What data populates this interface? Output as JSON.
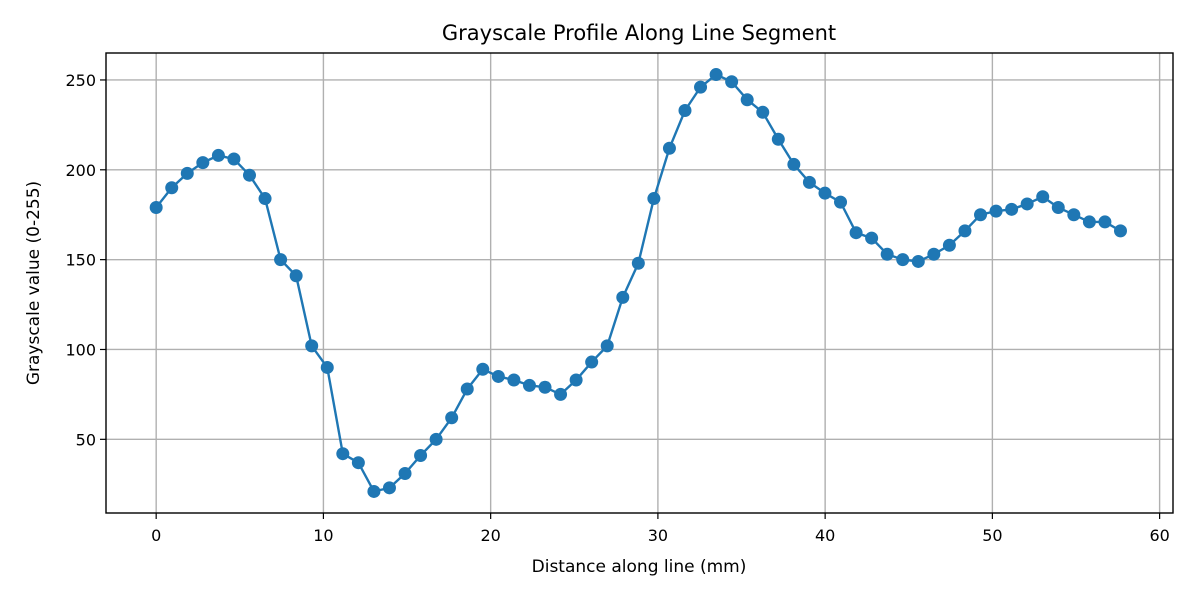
{
  "chart_data": {
    "type": "line",
    "title": "Grayscale Profile Along Line Segment",
    "xlabel": "Distance along line (mm)",
    "ylabel": "Grayscale value (0-255)",
    "xlim": [
      -3,
      60.8
    ],
    "ylim": [
      9,
      265
    ],
    "xticks": [
      0,
      10,
      20,
      30,
      40,
      50,
      60
    ],
    "yticks": [
      50,
      100,
      150,
      200,
      250
    ],
    "grid": true,
    "marker": "circle",
    "series": [
      {
        "color": "#1f77b4",
        "x": [
          0,
          0.93,
          1.86,
          2.79,
          3.72,
          4.65,
          5.58,
          6.51,
          7.44,
          8.37,
          9.3,
          10.23,
          11.16,
          12.09,
          13.02,
          13.95,
          14.88,
          15.81,
          16.74,
          17.67,
          18.6,
          19.53,
          20.46,
          21.39,
          22.32,
          23.25,
          24.18,
          25.11,
          26.04,
          26.97,
          27.9,
          28.83,
          29.76,
          30.69,
          31.62,
          32.55,
          33.48,
          34.41,
          35.34,
          36.27,
          37.2,
          38.13,
          39.06,
          39.99,
          40.92,
          41.85,
          42.78,
          43.71,
          44.64,
          45.57,
          46.5,
          47.43,
          48.36,
          49.29,
          50.22,
          51.15,
          52.08,
          53.01,
          53.94,
          54.87,
          55.8,
          56.73,
          57.66
        ],
        "y": [
          179,
          190,
          198,
          204,
          208,
          206,
          197,
          184,
          150,
          141,
          102,
          90,
          42,
          37,
          21,
          23,
          31,
          41,
          50,
          62,
          78,
          89,
          85,
          83,
          80,
          79,
          75,
          83,
          93,
          102,
          129,
          148,
          184,
          212,
          233,
          246,
          253,
          249,
          239,
          232,
          217,
          203,
          193,
          187,
          182,
          165,
          162,
          153,
          150,
          149,
          153,
          158,
          166,
          175,
          177,
          178,
          181,
          185,
          179,
          175,
          171,
          171,
          166
        ]
      }
    ]
  }
}
